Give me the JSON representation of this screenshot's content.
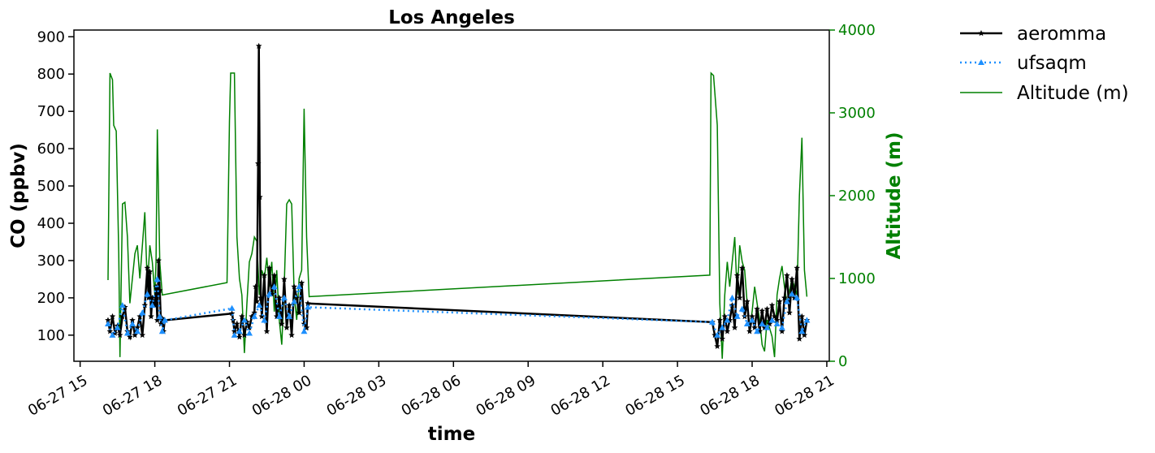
{
  "chart_data": {
    "type": "line",
    "title": "Los Angeles",
    "xlabel": "time",
    "ylabel": "CO (ppbv)",
    "ylabel_right": "Altitude (m)",
    "x_ticks": [
      "06-27 15",
      "06-27 18",
      "06-27 21",
      "06-28 00",
      "06-28 03",
      "06-28 06",
      "06-28 09",
      "06-28 12",
      "06-28 15",
      "06-28 18",
      "06-28 21"
    ],
    "x_tick_hours": [
      0,
      3,
      6,
      9,
      12,
      15,
      18,
      21,
      24,
      27,
      30
    ],
    "x_reference": "06-27 15",
    "xlim_hours": [
      -0.25,
      30.1
    ],
    "ylim": [
      30,
      918
    ],
    "y_ticks": [
      100,
      200,
      300,
      400,
      500,
      600,
      700,
      800,
      900
    ],
    "ylim_right": [
      0,
      4000
    ],
    "y_ticks_right": [
      0,
      1000,
      2000,
      3000,
      4000
    ],
    "legend_position": "outside-top-right",
    "colors": {
      "aeromma": "#000000",
      "ufsaqm": "#1e90ff",
      "altitude": "#008000",
      "right_axis": "#008000"
    },
    "series": [
      {
        "name": "aeromma",
        "axis": "left",
        "style": "solid-star",
        "points": [
          [
            1.12,
            140
          ],
          [
            1.2,
            110
          ],
          [
            1.3,
            150
          ],
          [
            1.4,
            105
          ],
          [
            1.5,
            125
          ],
          [
            1.6,
            100
          ],
          [
            1.7,
            150
          ],
          [
            1.8,
            175
          ],
          [
            1.9,
            110
          ],
          [
            2.0,
            95
          ],
          [
            2.1,
            140
          ],
          [
            2.2,
            100
          ],
          [
            2.3,
            120
          ],
          [
            2.4,
            150
          ],
          [
            2.5,
            100
          ],
          [
            2.6,
            180
          ],
          [
            2.7,
            280
          ],
          [
            2.75,
            200
          ],
          [
            2.8,
            270
          ],
          [
            2.85,
            150
          ],
          [
            2.9,
            200
          ],
          [
            3.0,
            180
          ],
          [
            3.05,
            230
          ],
          [
            3.1,
            140
          ],
          [
            3.15,
            300
          ],
          [
            3.2,
            220
          ],
          [
            3.25,
            130
          ],
          [
            3.3,
            145
          ],
          [
            3.35,
            110
          ],
          [
            3.4,
            140
          ],
          [
            6.1,
            158
          ],
          [
            6.15,
            140
          ],
          [
            6.2,
            110
          ],
          [
            6.3,
            130
          ],
          [
            6.4,
            95
          ],
          [
            6.5,
            150
          ],
          [
            6.6,
            100
          ],
          [
            6.7,
            135
          ],
          [
            6.8,
            120
          ],
          [
            6.9,
            150
          ],
          [
            7.0,
            160
          ],
          [
            7.05,
            230
          ],
          [
            7.1,
            190
          ],
          [
            7.15,
            560
          ],
          [
            7.18,
            875
          ],
          [
            7.22,
            470
          ],
          [
            7.26,
            200
          ],
          [
            7.3,
            150
          ],
          [
            7.4,
            260
          ],
          [
            7.5,
            110
          ],
          [
            7.6,
            280
          ],
          [
            7.7,
            210
          ],
          [
            7.8,
            260
          ],
          [
            7.9,
            150
          ],
          [
            8.0,
            200
          ],
          [
            8.1,
            130
          ],
          [
            8.2,
            250
          ],
          [
            8.3,
            120
          ],
          [
            8.4,
            180
          ],
          [
            8.5,
            100
          ],
          [
            8.6,
            230
          ],
          [
            8.7,
            200
          ],
          [
            8.8,
            160
          ],
          [
            8.9,
            240
          ],
          [
            9.0,
            130
          ],
          [
            9.1,
            120
          ],
          [
            9.15,
            185
          ],
          [
            25.4,
            135
          ],
          [
            25.5,
            100
          ],
          [
            25.6,
            70
          ],
          [
            25.7,
            140
          ],
          [
            25.8,
            90
          ],
          [
            25.9,
            150
          ],
          [
            26.0,
            110
          ],
          [
            26.1,
            140
          ],
          [
            26.2,
            180
          ],
          [
            26.3,
            120
          ],
          [
            26.4,
            260
          ],
          [
            26.5,
            200
          ],
          [
            26.6,
            280
          ],
          [
            26.7,
            150
          ],
          [
            26.8,
            190
          ],
          [
            26.9,
            110
          ],
          [
            27.0,
            150
          ],
          [
            27.1,
            120
          ],
          [
            27.2,
            170
          ],
          [
            27.3,
            110
          ],
          [
            27.4,
            165
          ],
          [
            27.5,
            120
          ],
          [
            27.6,
            170
          ],
          [
            27.7,
            130
          ],
          [
            27.8,
            180
          ],
          [
            27.9,
            150
          ],
          [
            28.0,
            140
          ],
          [
            28.1,
            190
          ],
          [
            28.2,
            110
          ],
          [
            28.3,
            200
          ],
          [
            28.4,
            260
          ],
          [
            28.5,
            160
          ],
          [
            28.6,
            250
          ],
          [
            28.7,
            200
          ],
          [
            28.8,
            280
          ],
          [
            28.9,
            90
          ],
          [
            29.0,
            150
          ],
          [
            29.1,
            100
          ],
          [
            29.2,
            140
          ]
        ]
      },
      {
        "name": "ufsaqm",
        "axis": "left",
        "style": "dotted-triangle",
        "points": [
          [
            1.12,
            130
          ],
          [
            1.3,
            100
          ],
          [
            1.5,
            120
          ],
          [
            1.7,
            180
          ],
          [
            1.9,
            105
          ],
          [
            2.1,
            130
          ],
          [
            2.3,
            110
          ],
          [
            2.5,
            160
          ],
          [
            2.7,
            210
          ],
          [
            2.9,
            180
          ],
          [
            3.1,
            250
          ],
          [
            3.2,
            150
          ],
          [
            3.3,
            110
          ],
          [
            3.4,
            140
          ],
          [
            6.1,
            172
          ],
          [
            6.2,
            100
          ],
          [
            6.4,
            110
          ],
          [
            6.6,
            140
          ],
          [
            6.8,
            105
          ],
          [
            7.0,
            150
          ],
          [
            7.2,
            180
          ],
          [
            7.4,
            140
          ],
          [
            7.6,
            210
          ],
          [
            7.8,
            230
          ],
          [
            8.0,
            150
          ],
          [
            8.2,
            200
          ],
          [
            8.4,
            150
          ],
          [
            8.6,
            190
          ],
          [
            8.8,
            230
          ],
          [
            9.0,
            110
          ],
          [
            9.15,
            175
          ],
          [
            25.4,
            135
          ],
          [
            25.6,
            100
          ],
          [
            25.8,
            120
          ],
          [
            26.0,
            140
          ],
          [
            26.2,
            200
          ],
          [
            26.4,
            150
          ],
          [
            26.6,
            170
          ],
          [
            26.8,
            130
          ],
          [
            27.0,
            140
          ],
          [
            27.2,
            110
          ],
          [
            27.4,
            130
          ],
          [
            27.6,
            120
          ],
          [
            27.8,
            140
          ],
          [
            28.0,
            130
          ],
          [
            28.2,
            120
          ],
          [
            28.4,
            190
          ],
          [
            28.6,
            210
          ],
          [
            28.8,
            200
          ],
          [
            29.0,
            110
          ],
          [
            29.2,
            140
          ]
        ]
      },
      {
        "name": "Altitude (m)",
        "axis": "right",
        "style": "solid",
        "points": [
          [
            1.12,
            980
          ],
          [
            1.2,
            3480
          ],
          [
            1.3,
            3400
          ],
          [
            1.35,
            2850
          ],
          [
            1.45,
            2780
          ],
          [
            1.55,
            1300
          ],
          [
            1.6,
            50
          ],
          [
            1.7,
            1900
          ],
          [
            1.8,
            1920
          ],
          [
            1.9,
            1500
          ],
          [
            2.0,
            700
          ],
          [
            2.1,
            1000
          ],
          [
            2.2,
            1300
          ],
          [
            2.3,
            1400
          ],
          [
            2.4,
            1000
          ],
          [
            2.5,
            1400
          ],
          [
            2.6,
            1800
          ],
          [
            2.7,
            900
          ],
          [
            2.8,
            1400
          ],
          [
            2.9,
            1200
          ],
          [
            3.0,
            800
          ],
          [
            3.05,
            1200
          ],
          [
            3.1,
            2800
          ],
          [
            3.2,
            1200
          ],
          [
            3.3,
            800
          ],
          [
            5.9,
            950
          ],
          [
            6.0,
            2900
          ],
          [
            6.05,
            3480
          ],
          [
            6.2,
            3480
          ],
          [
            6.3,
            1500
          ],
          [
            6.4,
            1000
          ],
          [
            6.5,
            800
          ],
          [
            6.6,
            100
          ],
          [
            6.7,
            700
          ],
          [
            6.8,
            1200
          ],
          [
            6.9,
            1300
          ],
          [
            7.0,
            1500
          ],
          [
            7.1,
            1450
          ],
          [
            7.2,
            800
          ],
          [
            7.3,
            1100
          ],
          [
            7.4,
            1000
          ],
          [
            7.5,
            1250
          ],
          [
            7.6,
            900
          ],
          [
            7.7,
            1200
          ],
          [
            7.8,
            600
          ],
          [
            7.9,
            1100
          ],
          [
            8.0,
            500
          ],
          [
            8.1,
            200
          ],
          [
            8.2,
            900
          ],
          [
            8.3,
            1900
          ],
          [
            8.4,
            1950
          ],
          [
            8.5,
            1900
          ],
          [
            8.6,
            800
          ],
          [
            8.7,
            500
          ],
          [
            8.8,
            1000
          ],
          [
            8.9,
            1100
          ],
          [
            9.0,
            3050
          ],
          [
            9.1,
            1500
          ],
          [
            9.2,
            780
          ],
          [
            25.3,
            1040
          ],
          [
            25.35,
            3480
          ],
          [
            25.45,
            3450
          ],
          [
            25.6,
            2850
          ],
          [
            25.7,
            700
          ],
          [
            25.8,
            30
          ],
          [
            25.9,
            800
          ],
          [
            26.0,
            1200
          ],
          [
            26.1,
            900
          ],
          [
            26.2,
            1200
          ],
          [
            26.3,
            1500
          ],
          [
            26.4,
            800
          ],
          [
            26.5,
            1400
          ],
          [
            26.6,
            1200
          ],
          [
            26.7,
            1100
          ],
          [
            26.8,
            700
          ],
          [
            26.9,
            400
          ],
          [
            27.0,
            600
          ],
          [
            27.1,
            900
          ],
          [
            27.2,
            700
          ],
          [
            27.3,
            500
          ],
          [
            27.4,
            200
          ],
          [
            27.5,
            120
          ],
          [
            27.6,
            500
          ],
          [
            27.7,
            400
          ],
          [
            27.8,
            300
          ],
          [
            27.9,
            50
          ],
          [
            28.0,
            800
          ],
          [
            28.1,
            1000
          ],
          [
            28.2,
            1150
          ],
          [
            28.3,
            900
          ],
          [
            28.4,
            700
          ],
          [
            28.5,
            850
          ],
          [
            28.6,
            1000
          ],
          [
            28.7,
            900
          ],
          [
            28.8,
            800
          ],
          [
            28.9,
            2000
          ],
          [
            29.0,
            2700
          ],
          [
            29.1,
            1100
          ],
          [
            29.2,
            780
          ]
        ]
      }
    ]
  }
}
